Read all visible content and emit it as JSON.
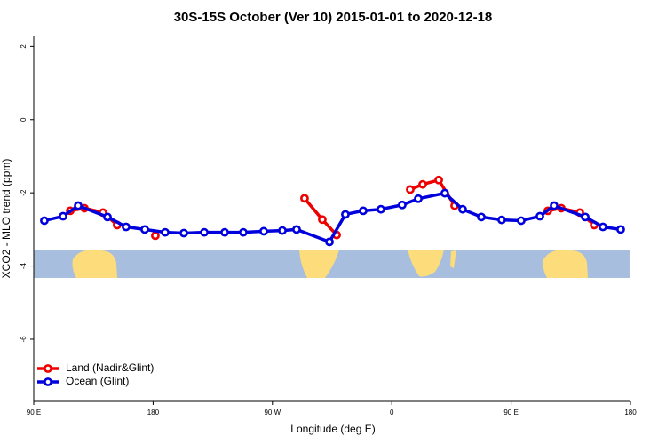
{
  "chart_data": {
    "type": "line",
    "title": "30S-15S October (Ver 10)   2015-01-01 to 2020-12-18",
    "xlabel": "Longitude (deg E)",
    "ylabel": "XCO2 - MLO trend (ppm)",
    "xlim": [
      90,
      540
    ],
    "xticks": [
      {
        "value": 90,
        "label": "90 E"
      },
      180,
      {
        "value": 270,
        "label": "90 W"
      },
      {
        "value": 360,
        "label": "0"
      },
      {
        "value": 450,
        "label": "90 E"
      },
      {
        "value": 540,
        "label": "180"
      }
    ],
    "ylim": [
      -7.7,
      2.3
    ],
    "yticks": [
      2,
      0,
      -2,
      -4,
      -6
    ],
    "legend": "bottom-left",
    "series": [
      {
        "name": "Land (Nadir&Glint)",
        "color": "#ee0000",
        "x": [
          117.5,
          128.2,
          142.2,
          152.9,
          null,
          181.7,
          null,
          294.2,
          307.6,
          318.4,
          null,
          373.9,
          383.3,
          395.4,
          407.4,
          null,
          477.7,
          487.8,
          501.8,
          512.6
        ],
        "values": [
          -2.49,
          -2.42,
          -2.54,
          -2.88,
          null,
          -3.17,
          null,
          -2.15,
          -2.73,
          -3.15,
          null,
          -1.91,
          -1.77,
          -1.65,
          -2.35,
          null,
          -2.49,
          -2.42,
          -2.54,
          -2.88
        ]
      },
      {
        "name": "Ocean (Glint)",
        "color": "#0000dd",
        "x": [
          98.0,
          112.1,
          123.5,
          145.6,
          159.6,
          173.7,
          189.1,
          203.2,
          218.6,
          234.0,
          248.0,
          263.4,
          277.5,
          288.2,
          313.0,
          325.0,
          338.4,
          351.8,
          367.9,
          380.0,
          400.0,
          413.4,
          427.5,
          442.9,
          457.6,
          471.7,
          482.4,
          505.9,
          519.2,
          532.6
        ],
        "values": [
          -2.76,
          -2.64,
          -2.35,
          -2.66,
          -2.93,
          -3.0,
          -3.08,
          -3.1,
          -3.08,
          -3.08,
          -3.08,
          -3.05,
          -3.03,
          -3.0,
          -3.34,
          -2.59,
          -2.49,
          -2.45,
          -2.33,
          -2.16,
          -2.01,
          -2.45,
          -2.66,
          -2.74,
          -2.76,
          -2.64,
          -2.35,
          -2.66,
          -2.93,
          -3.0
        ]
      }
    ]
  }
}
